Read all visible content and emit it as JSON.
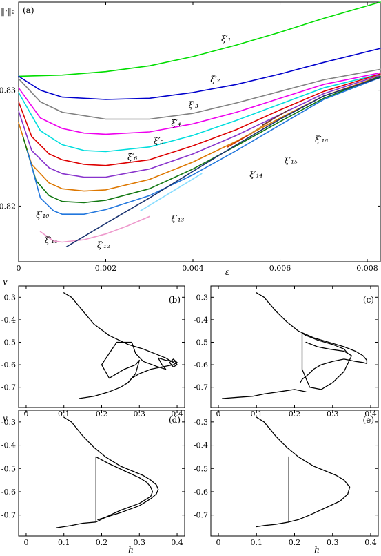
{
  "chart_data": [
    {
      "panel": "(a)",
      "type": "line",
      "ylabel": "‖·‖₂",
      "xlabel": "ε",
      "xlim": [
        0,
        0.0083
      ],
      "ylim": [
        0.8152,
        0.8376
      ],
      "xticks": [
        0,
        0.002,
        0.004,
        0.006,
        0.008
      ],
      "xtick_labels": [
        "0",
        "0.002",
        "0.004",
        "0.006",
        "0.008"
      ],
      "yticks": [
        0.82,
        0.83
      ],
      "ytick_labels": [
        "0.82",
        "0.83"
      ],
      "grid": false,
      "series": [
        {
          "name": "ξ′₁",
          "color": "#00dd00",
          "x": [
            0,
            0.001,
            0.002,
            0.003,
            0.004,
            0.005,
            0.006,
            0.007,
            0.0083
          ],
          "y": [
            0.8312,
            0.8313,
            0.8316,
            0.8321,
            0.8329,
            0.8339,
            0.835,
            0.8362,
            0.8376
          ]
        },
        {
          "name": "ξ′₂",
          "color": "#0000cc",
          "x": [
            0,
            0.0005,
            0.001,
            0.002,
            0.003,
            0.004,
            0.005,
            0.006,
            0.007,
            0.0083
          ],
          "y": [
            0.8312,
            0.83,
            0.8294,
            0.8292,
            0.8293,
            0.8298,
            0.8305,
            0.8314,
            0.8324,
            0.8336
          ]
        },
        {
          "name": "ξ′₃",
          "color": "#808080",
          "x": [
            0,
            0.0005,
            0.001,
            0.002,
            0.003,
            0.004,
            0.005,
            0.006,
            0.007,
            0.0083
          ],
          "y": [
            0.831,
            0.829,
            0.8281,
            0.8275,
            0.8275,
            0.828,
            0.8289,
            0.8299,
            0.8309,
            0.8318
          ]
        },
        {
          "name": "ξ′₄",
          "color": "#ee00ee",
          "x": [
            0,
            0.0005,
            0.001,
            0.0015,
            0.002,
            0.003,
            0.004,
            0.005,
            0.006,
            0.007,
            0.0083
          ],
          "y": [
            0.8302,
            0.8276,
            0.8267,
            0.8263,
            0.8262,
            0.8264,
            0.8271,
            0.8281,
            0.8293,
            0.8305,
            0.8315
          ]
        },
        {
          "name": "ξ′₅",
          "color": "#00dddd",
          "x": [
            0,
            0.0005,
            0.001,
            0.0015,
            0.002,
            0.003,
            0.004,
            0.005,
            0.006,
            0.007,
            0.0083
          ],
          "y": [
            0.8298,
            0.8265,
            0.8253,
            0.8248,
            0.8247,
            0.8251,
            0.8261,
            0.8274,
            0.8288,
            0.8302,
            0.8314
          ]
        },
        {
          "name": "ξ′₆",
          "color": "#dd0000",
          "x": [
            0,
            0.0003,
            0.0007,
            0.001,
            0.0015,
            0.002,
            0.003,
            0.004,
            0.005,
            0.006,
            0.007,
            0.0083
          ],
          "y": [
            0.829,
            0.826,
            0.8245,
            0.824,
            0.8236,
            0.8235,
            0.824,
            0.8252,
            0.8266,
            0.8283,
            0.8299,
            0.8314
          ]
        },
        {
          "name": "",
          "color": "#8833cc",
          "x": [
            0,
            0.0003,
            0.0007,
            0.001,
            0.0015,
            0.002,
            0.003,
            0.004,
            0.005,
            0.006,
            0.007,
            0.0083
          ],
          "y": [
            0.8282,
            0.8248,
            0.8233,
            0.8228,
            0.8225,
            0.8225,
            0.8232,
            0.8245,
            0.8261,
            0.8279,
            0.8297,
            0.8313
          ]
        },
        {
          "name": "",
          "color": "#dd7700",
          "x": [
            0,
            0.0003,
            0.0007,
            0.001,
            0.0015,
            0.002,
            0.003,
            0.004,
            0.005,
            0.006,
            0.007,
            0.0083
          ],
          "y": [
            0.8272,
            0.8236,
            0.822,
            0.8215,
            0.8213,
            0.8214,
            0.8223,
            0.8238,
            0.8256,
            0.8276,
            0.8295,
            0.8312
          ]
        },
        {
          "name": "",
          "color": "#117711",
          "x": [
            0.0001,
            0.0004,
            0.0007,
            0.001,
            0.0015,
            0.002,
            0.003,
            0.004,
            0.005,
            0.006,
            0.007,
            0.0083
          ],
          "y": [
            0.826,
            0.8222,
            0.8209,
            0.8204,
            0.8203,
            0.8205,
            0.8215,
            0.8232,
            0.8252,
            0.8273,
            0.8293,
            0.8312
          ]
        },
        {
          "name": "ξ′₁₀",
          "color": "#2277dd",
          "x": [
            0.0002,
            0.0005,
            0.0008,
            0.001,
            0.0015,
            0.002,
            0.003,
            0.004,
            0.005,
            0.006,
            0.007,
            0.0083
          ],
          "y": [
            0.8248,
            0.8207,
            0.8196,
            0.8193,
            0.8193,
            0.8197,
            0.8209,
            0.8227,
            0.8248,
            0.827,
            0.8292,
            0.8311
          ]
        },
        {
          "name": "ξ′₁₁",
          "color": "#ee99cc",
          "x": [
            0.0005,
            0.0008,
            0.001,
            0.0015,
            0.002,
            0.0025,
            0.003
          ],
          "y": [
            0.8178,
            0.817,
            0.8169,
            0.8171,
            0.8176,
            0.8183,
            0.8191
          ]
        },
        {
          "name": "ξ′₁₂",
          "color": "#1a3370",
          "x": [
            0.0011,
            0.002,
            0.003,
            0.004,
            0.005,
            0.006,
            0.007,
            0.0083
          ],
          "y": [
            0.8165,
            0.8185,
            0.8207,
            0.823,
            0.8253,
            0.8275,
            0.8295,
            0.8311
          ]
        },
        {
          "name": "ξ′₁₃",
          "color": "#88ddff",
          "x": [
            0.0028,
            0.0035,
            0.0042
          ],
          "y": [
            0.8196,
            0.8212,
            0.8228
          ]
        },
        {
          "name": "ξ′₁₄",
          "color": "#cc3300",
          "x": [
            0.0048,
            0.0054
          ],
          "y": [
            0.8251,
            0.8264
          ]
        },
        {
          "name": "ξ′₁₅",
          "color": "#cc8833",
          "x": [
            0.0053,
            0.0058
          ],
          "y": [
            0.8262,
            0.8274
          ]
        },
        {
          "name": "ξ′₁₆",
          "color": "#663333",
          "x": [
            0.0056,
            0.0062
          ],
          "y": [
            0.827,
            0.8283
          ]
        }
      ],
      "labels": [
        {
          "text": "ξ′₁",
          "x": 0.00465,
          "y": 0.8342
        },
        {
          "text": "ξ′₂",
          "x": 0.0044,
          "y": 0.8307
        },
        {
          "text": "ξ′₃",
          "x": 0.0039,
          "y": 0.8285
        },
        {
          "text": "ξ′₄",
          "x": 0.0035,
          "y": 0.8269
        },
        {
          "text": "ξ′₅",
          "x": 0.0031,
          "y": 0.8254
        },
        {
          "text": "ξ′₆",
          "x": 0.0025,
          "y": 0.824
        },
        {
          "text": "ξ′₁₀",
          "x": 0.0004,
          "y": 0.819
        },
        {
          "text": "ξ′₁₁",
          "x": 0.0006,
          "y": 0.8168
        },
        {
          "text": "ξ′₁₂",
          "x": 0.0018,
          "y": 0.8164
        },
        {
          "text": "ξ′₁₃",
          "x": 0.0035,
          "y": 0.8187
        },
        {
          "text": "ξ′₁₄",
          "x": 0.0053,
          "y": 0.8225
        },
        {
          "text": "ξ′₁₅",
          "x": 0.0061,
          "y": 0.8237
        },
        {
          "text": "ξ′₁₆",
          "x": 0.0068,
          "y": 0.8255
        }
      ]
    },
    {
      "panel": "(b)",
      "type": "line",
      "xlabel": "",
      "ylabel": "v",
      "xlim": [
        -0.02,
        0.42
      ],
      "ylim": [
        -0.79,
        -0.25
      ],
      "xtick_labels": [
        "0",
        "0.1",
        "0.2",
        "0.3",
        "0.4"
      ],
      "ytick_labels": [
        "-0.3",
        "-0.4",
        "-0.5",
        "-0.6",
        "-0.7"
      ],
      "series": [
        {
          "x": [
            0.1,
            0.12,
            0.15,
            0.18,
            0.22,
            0.27,
            0.31,
            0.34,
            0.37,
            0.385,
            0.39
          ],
          "y": [
            -0.28,
            -0.3,
            -0.36,
            -0.42,
            -0.47,
            -0.51,
            -0.53,
            -0.55,
            -0.57,
            -0.585,
            -0.59
          ]
        },
        {
          "x": [
            0.4,
            0.39,
            0.38,
            0.39,
            0.4,
            0.395,
            0.37,
            0.35,
            0.36,
            0.37,
            0.35,
            0.31,
            0.29,
            0.28,
            0.27,
            0.24,
            0.2,
            0.22,
            0.26,
            0.29,
            0.3,
            0.29,
            0.27
          ],
          "y": [
            -0.59,
            -0.575,
            -0.59,
            -0.61,
            -0.6,
            -0.585,
            -0.58,
            -0.57,
            -0.6,
            -0.62,
            -0.61,
            -0.585,
            -0.55,
            -0.5,
            -0.5,
            -0.5,
            -0.6,
            -0.66,
            -0.62,
            -0.6,
            -0.58,
            -0.64,
            -0.68
          ]
        },
        {
          "x": [
            0.27,
            0.28,
            0.3,
            0.33,
            0.36,
            0.39,
            0.4
          ],
          "y": [
            -0.68,
            -0.66,
            -0.64,
            -0.62,
            -0.61,
            -0.6,
            -0.59
          ]
        },
        {
          "x": [
            0.27,
            0.25,
            0.22,
            0.18,
            0.14
          ],
          "y": [
            -0.68,
            -0.7,
            -0.72,
            -0.74,
            -0.75
          ]
        }
      ]
    },
    {
      "panel": "(c)",
      "type": "line",
      "xlabel": "",
      "ylabel": "",
      "xlim": [
        -0.02,
        0.42
      ],
      "ylim": [
        -0.79,
        -0.25
      ],
      "xtick_labels": [
        "0",
        "0.1",
        "0.2",
        "0.3",
        "0.4"
      ],
      "ytick_labels": [
        "-0.3",
        "-0.4",
        "-0.5",
        "-0.6",
        "-0.7"
      ],
      "series": [
        {
          "x": [
            0.1,
            0.12,
            0.15,
            0.18,
            0.21,
            0.25,
            0.29,
            0.33,
            0.36,
            0.38,
            0.39,
            0.39,
            0.38,
            0.36,
            0.33,
            0.3,
            0.27,
            0.25,
            0.235,
            0.22,
            0.215
          ],
          "y": [
            -0.28,
            -0.3,
            -0.36,
            -0.41,
            -0.45,
            -0.48,
            -0.5,
            -0.52,
            -0.54,
            -0.56,
            -0.58,
            -0.595,
            -0.59,
            -0.585,
            -0.575,
            -0.585,
            -0.6,
            -0.62,
            -0.645,
            -0.665,
            -0.68
          ]
        },
        {
          "x": [
            0.22,
            0.23,
            0.26,
            0.3,
            0.33,
            0.34
          ],
          "y": [
            -0.46,
            -0.47,
            -0.49,
            -0.51,
            -0.53,
            -0.55
          ]
        },
        {
          "x": [
            0.22,
            0.22,
            0.24,
            0.27,
            0.3,
            0.33,
            0.35,
            0.33,
            0.29,
            0.26,
            0.23
          ],
          "y": [
            -0.46,
            -0.62,
            -0.7,
            -0.71,
            -0.68,
            -0.63,
            -0.56,
            -0.54,
            -0.53,
            -0.52,
            -0.5
          ]
        },
        {
          "x": [
            0.23,
            0.2,
            0.16,
            0.12,
            0.09,
            0.05,
            0.01
          ],
          "y": [
            -0.72,
            -0.71,
            -0.72,
            -0.73,
            -0.74,
            -0.745,
            -0.75
          ]
        }
      ]
    },
    {
      "panel": "(d)",
      "type": "line",
      "xlabel": "h",
      "ylabel": "v",
      "xlim": [
        -0.02,
        0.42
      ],
      "ylim": [
        -0.79,
        -0.25
      ],
      "xtick_labels": [
        "0",
        "0.1",
        "0.2",
        "0.3",
        "0.4"
      ],
      "ytick_labels": [
        "-0.3",
        "-0.4",
        "-0.5",
        "-0.6",
        "-0.7"
      ],
      "series": [
        {
          "x": [
            0.1,
            0.12,
            0.15,
            0.18,
            0.21,
            0.25,
            0.28,
            0.31,
            0.33,
            0.345,
            0.35,
            0.345,
            0.33,
            0.3,
            0.25,
            0.21,
            0.19
          ],
          "y": [
            -0.28,
            -0.3,
            -0.36,
            -0.41,
            -0.45,
            -0.49,
            -0.51,
            -0.53,
            -0.55,
            -0.57,
            -0.59,
            -0.61,
            -0.63,
            -0.66,
            -0.69,
            -0.71,
            -0.72
          ]
        },
        {
          "x": [
            0.185,
            0.185
          ],
          "y": [
            -0.45,
            -0.73
          ]
        },
        {
          "x": [
            0.185,
            0.22,
            0.26,
            0.3,
            0.32,
            0.33,
            0.335,
            0.33,
            0.3,
            0.25,
            0.21,
            0.185
          ],
          "y": [
            -0.45,
            -0.48,
            -0.51,
            -0.54,
            -0.56,
            -0.58,
            -0.6,
            -0.62,
            -0.65,
            -0.68,
            -0.71,
            -0.73
          ]
        },
        {
          "x": [
            0.185,
            0.15,
            0.12,
            0.1,
            0.08
          ],
          "y": [
            -0.73,
            -0.735,
            -0.745,
            -0.75,
            -0.755
          ]
        }
      ]
    },
    {
      "panel": "(e)",
      "type": "line",
      "xlabel": "h",
      "ylabel": "",
      "xlim": [
        -0.02,
        0.42
      ],
      "ylim": [
        -0.79,
        -0.25
      ],
      "xtick_labels": [
        "0",
        "0.1",
        "0.2",
        "0.3",
        "0.4"
      ],
      "ytick_labels": [
        "-0.3",
        "-0.4",
        "-0.5",
        "-0.6",
        "-0.7"
      ],
      "series": [
        {
          "x": [
            0.1,
            0.12,
            0.15,
            0.18,
            0.21,
            0.25,
            0.28,
            0.31,
            0.33,
            0.345,
            0.34,
            0.32,
            0.28,
            0.24,
            0.21,
            0.185
          ],
          "y": [
            -0.28,
            -0.3,
            -0.36,
            -0.41,
            -0.45,
            -0.49,
            -0.51,
            -0.53,
            -0.55,
            -0.58,
            -0.61,
            -0.64,
            -0.67,
            -0.7,
            -0.72,
            -0.73
          ]
        },
        {
          "x": [
            0.185,
            0.185
          ],
          "y": [
            -0.45,
            -0.73
          ]
        },
        {
          "x": [
            0.185,
            0.15,
            0.12,
            0.1
          ],
          "y": [
            -0.73,
            -0.74,
            -0.745,
            -0.75
          ]
        }
      ]
    }
  ]
}
